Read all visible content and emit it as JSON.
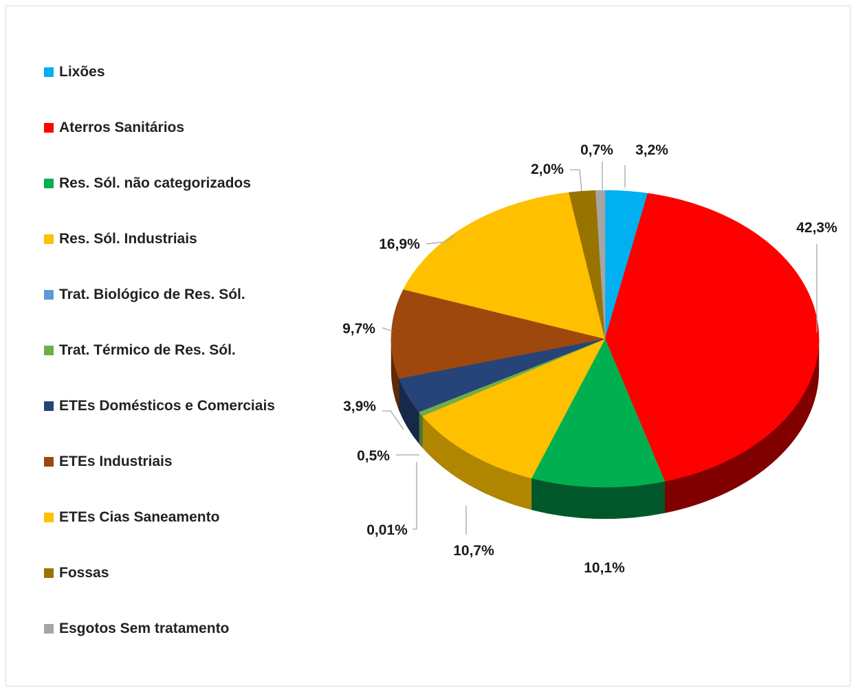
{
  "chart_data": {
    "type": "pie",
    "title": "",
    "legend_position": "left",
    "slices": [
      {
        "label": "Lixões",
        "value": 3.2,
        "display": "3,2%",
        "color": "#00B0F0",
        "side_color": "#007BA8"
      },
      {
        "label": "Aterros Sanitários",
        "value": 42.3,
        "display": "42,3%",
        "color": "#FF0000",
        "side_color": "#800000"
      },
      {
        "label": "Res. Sól. não categorizados",
        "value": 10.1,
        "display": "10,1%",
        "color": "#00B050",
        "side_color": "#00582A"
      },
      {
        "label": "Res. Sól. Industriais",
        "value": 10.7,
        "display": "10,7%",
        "color": "#FFC000",
        "side_color": "#B08500"
      },
      {
        "label": "Trat. Biológico de Res. Sól.",
        "value": 0.01,
        "display": "0,01%",
        "color": "#5B9BD5",
        "side_color": "#3E6C95"
      },
      {
        "label": "Trat. Térmico de Res. Sól.",
        "value": 0.5,
        "display": "0,5%",
        "color": "#70AD47",
        "side_color": "#4B7530"
      },
      {
        "label": "ETEs Domésticos e Comerciais",
        "value": 3.9,
        "display": "3,9%",
        "color": "#264478",
        "side_color": "#16294A"
      },
      {
        "label": "ETEs Industriais",
        "value": 9.7,
        "display": "9,7%",
        "color": "#9E480E",
        "side_color": "#5E2A08"
      },
      {
        "label": "ETEs Cias Saneamento",
        "value": 16.9,
        "display": "16,9%",
        "color": "#FFC000",
        "side_color": "#B08500"
      },
      {
        "label": "Fossas",
        "value": 2.0,
        "display": "2,0%",
        "color": "#997300",
        "side_color": "#5C4500"
      },
      {
        "label": "Esgotos Sem tratamento",
        "value": 0.7,
        "display": "0,7%",
        "color": "#A5A5A5",
        "side_color": "#6E6E6E"
      }
    ]
  }
}
